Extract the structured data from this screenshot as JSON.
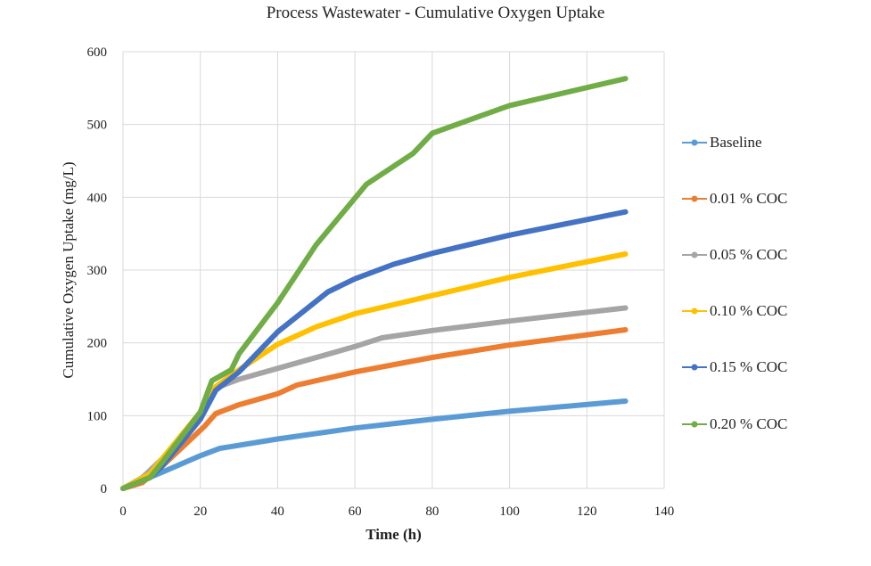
{
  "chart_data": {
    "type": "line",
    "title": "Process Wastewater - Cumulative Oxygen Uptake",
    "xlabel": "Time (h)",
    "ylabel": "Cumulative Oxygen Uptake (mg/L)",
    "xlim": [
      0,
      140
    ],
    "ylim": [
      0,
      600
    ],
    "xticks": [
      0,
      20,
      40,
      60,
      80,
      100,
      120,
      140
    ],
    "yticks": [
      0,
      100,
      200,
      300,
      400,
      500,
      600
    ],
    "grid": true,
    "legend_position": "right",
    "series": [
      {
        "name": "Baseline",
        "color": "#5B9BD5",
        "points": [
          [
            0,
            0
          ],
          [
            10,
            22
          ],
          [
            20,
            45
          ],
          [
            25,
            55
          ],
          [
            40,
            68
          ],
          [
            60,
            83
          ],
          [
            80,
            95
          ],
          [
            100,
            106
          ],
          [
            130,
            120
          ]
        ]
      },
      {
        "name": "0.01 % COC",
        "color": "#ED7D31",
        "points": [
          [
            0,
            0
          ],
          [
            5,
            8
          ],
          [
            10,
            30
          ],
          [
            20,
            80
          ],
          [
            21,
            85
          ],
          [
            24,
            103
          ],
          [
            30,
            115
          ],
          [
            40,
            130
          ],
          [
            45,
            142
          ],
          [
            60,
            160
          ],
          [
            80,
            180
          ],
          [
            100,
            197
          ],
          [
            130,
            218
          ]
        ]
      },
      {
        "name": "0.05 % COC",
        "color": "#A5A5A5",
        "points": [
          [
            0,
            0
          ],
          [
            5,
            15
          ],
          [
            10,
            40
          ],
          [
            20,
            100
          ],
          [
            24,
            138
          ],
          [
            30,
            150
          ],
          [
            40,
            165
          ],
          [
            60,
            195
          ],
          [
            67,
            207
          ],
          [
            80,
            217
          ],
          [
            100,
            230
          ],
          [
            130,
            248
          ]
        ]
      },
      {
        "name": "0.10 % COC",
        "color": "#FFC000",
        "points": [
          [
            0,
            0
          ],
          [
            7,
            20
          ],
          [
            10,
            40
          ],
          [
            20,
            105
          ],
          [
            24,
            140
          ],
          [
            30,
            163
          ],
          [
            40,
            198
          ],
          [
            50,
            222
          ],
          [
            60,
            240
          ],
          [
            80,
            265
          ],
          [
            100,
            290
          ],
          [
            130,
            322
          ]
        ]
      },
      {
        "name": "0.15 % COC",
        "color": "#4472C4",
        "points": [
          [
            0,
            0
          ],
          [
            7,
            15
          ],
          [
            10,
            30
          ],
          [
            20,
            95
          ],
          [
            24,
            135
          ],
          [
            30,
            160
          ],
          [
            40,
            215
          ],
          [
            53,
            270
          ],
          [
            60,
            288
          ],
          [
            70,
            308
          ],
          [
            80,
            323
          ],
          [
            100,
            348
          ],
          [
            130,
            380
          ]
        ]
      },
      {
        "name": "0.20 % COC",
        "color": "#70AD47",
        "points": [
          [
            0,
            0
          ],
          [
            7,
            15
          ],
          [
            10,
            35
          ],
          [
            20,
            105
          ],
          [
            23,
            148
          ],
          [
            28,
            163
          ],
          [
            30,
            185
          ],
          [
            40,
            255
          ],
          [
            50,
            335
          ],
          [
            63,
            418
          ],
          [
            75,
            460
          ],
          [
            80,
            488
          ],
          [
            90,
            507
          ],
          [
            100,
            526
          ],
          [
            130,
            563
          ]
        ]
      }
    ]
  }
}
